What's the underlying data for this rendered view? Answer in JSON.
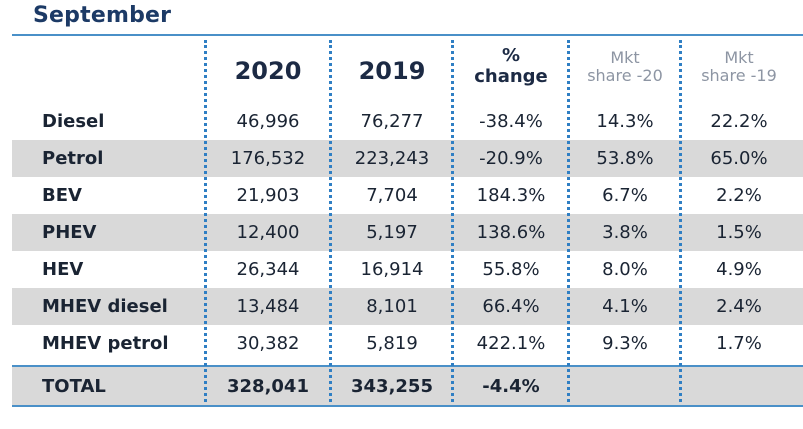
{
  "title": "September",
  "header": {
    "col_2020": "2020",
    "col_2019": "2019",
    "col_change_line1": "%",
    "col_change_line2": "change",
    "col_mkt20_line1": "Mkt",
    "col_mkt20_line2": "share -20",
    "col_mkt19_line1": "Mkt",
    "col_mkt19_line2": "share -19"
  },
  "rows": [
    {
      "label": "Diesel",
      "v2020": "46,996",
      "v2019": "76,277",
      "change": "-38.4%",
      "mkt20": "14.3%",
      "mkt19": "22.2%"
    },
    {
      "label": "Petrol",
      "v2020": "176,532",
      "v2019": "223,243",
      "change": "-20.9%",
      "mkt20": "53.8%",
      "mkt19": "65.0%"
    },
    {
      "label": "BEV",
      "v2020": "21,903",
      "v2019": "7,704",
      "change": "184.3%",
      "mkt20": "6.7%",
      "mkt19": "2.2%"
    },
    {
      "label": "PHEV",
      "v2020": "12,400",
      "v2019": "5,197",
      "change": "138.6%",
      "mkt20": "3.8%",
      "mkt19": "1.5%"
    },
    {
      "label": "HEV",
      "v2020": "26,344",
      "v2019": "16,914",
      "change": "55.8%",
      "mkt20": "8.0%",
      "mkt19": "4.9%"
    },
    {
      "label": "MHEV diesel",
      "v2020": "13,484",
      "v2019": "8,101",
      "change": "66.4%",
      "mkt20": "4.1%",
      "mkt19": "2.4%"
    },
    {
      "label": "MHEV petrol",
      "v2020": "30,382",
      "v2019": "5,819",
      "change": "422.1%",
      "mkt20": "9.3%",
      "mkt19": "1.7%"
    }
  ],
  "total": {
    "label": "TOTAL",
    "v2020": "328,041",
    "v2019": "343,255",
    "change": "-4.4%",
    "mkt20": "",
    "mkt19": ""
  },
  "colors": {
    "title": "#1c3a66",
    "rule": "#4a90c8",
    "dots": "#2f7fc4",
    "shade": "#d9d9d9"
  }
}
